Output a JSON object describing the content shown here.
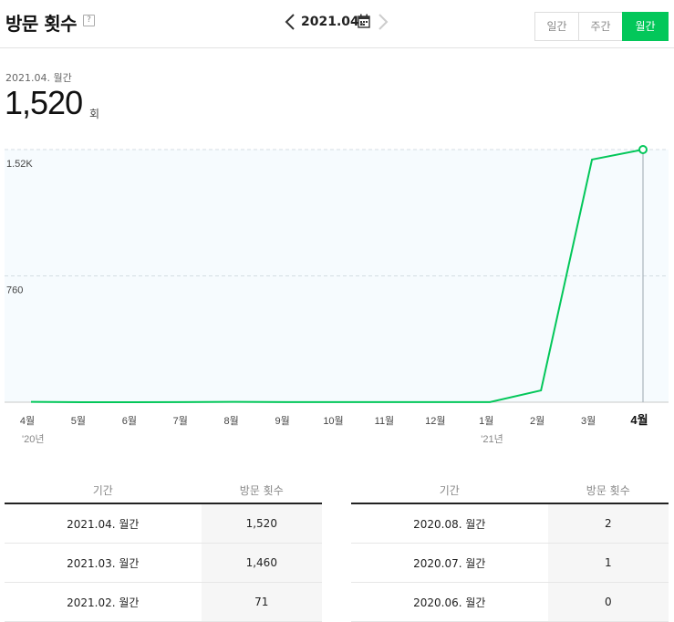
{
  "header": {
    "title": "방문 횟수",
    "help": "?",
    "date": "2021.04."
  },
  "period_tabs": [
    {
      "label": "일간",
      "active": false
    },
    {
      "label": "주간",
      "active": false
    },
    {
      "label": "월간",
      "active": true
    }
  ],
  "summary": {
    "period": "2021.04. 월간",
    "value": "1,520",
    "unit": "회"
  },
  "colors": {
    "accent": "#03c75a",
    "line": "#03c75a"
  },
  "chart_data": {
    "type": "line",
    "x": [
      "4월",
      "5월",
      "6월",
      "7월",
      "8월",
      "9월",
      "10월",
      "11월",
      "12월",
      "1월",
      "2월",
      "3월",
      "4월"
    ],
    "year_labels": [
      "'20년",
      "",
      "",
      "",
      "",
      "",
      "",
      "",
      "",
      "'21년",
      "",
      "",
      ""
    ],
    "values": [
      2,
      0,
      0,
      1,
      2,
      1,
      1,
      1,
      1,
      1,
      71,
      1460,
      1520
    ],
    "ytick_labels": [
      "1.52K",
      "760"
    ],
    "ytick_values": [
      1520,
      760
    ],
    "ylim": [
      0,
      1520
    ],
    "highlight_last": true
  },
  "table_left": {
    "headers": [
      "기간",
      "방문 횟수"
    ],
    "rows": [
      [
        "2021.04. 월간",
        "1,520"
      ],
      [
        "2021.03. 월간",
        "1,460"
      ],
      [
        "2021.02. 월간",
        "71"
      ]
    ]
  },
  "table_right": {
    "headers": [
      "기간",
      "방문 횟수"
    ],
    "rows": [
      [
        "2020.08. 월간",
        "2"
      ],
      [
        "2020.07. 월간",
        "1"
      ],
      [
        "2020.06. 월간",
        "0"
      ]
    ]
  }
}
